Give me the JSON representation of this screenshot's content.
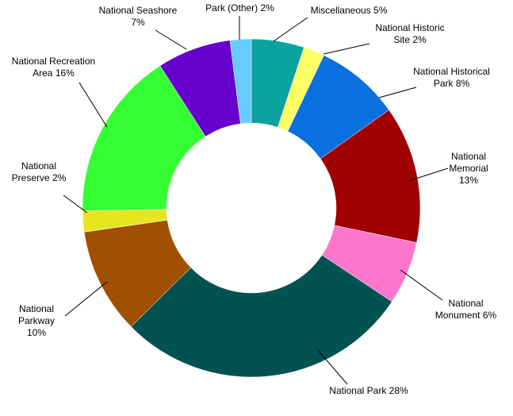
{
  "chart_data": {
    "type": "donut",
    "categories": [
      "Miscellaneous",
      "National Historic Site",
      "National Historical Park",
      "National Memorial",
      "National Monument",
      "National Park",
      "National Parkway",
      "National Preserve",
      "National Recreation Area",
      "National Seashore",
      "Park (Other)"
    ],
    "values": [
      5,
      2,
      8,
      13,
      6,
      28,
      10,
      2,
      16,
      7,
      2
    ],
    "value_labels": [
      "5%",
      "2%",
      "8%",
      "13%",
      "6%",
      "28%",
      "10%",
      "2%",
      "16%",
      "7%",
      "2%"
    ],
    "colors": [
      "#0aa39e",
      "#ffff66",
      "#0a70e0",
      "#a00000",
      "#ff77cc",
      "#035252",
      "#a05000",
      "#e6e620",
      "#33ff33",
      "#6600cc",
      "#66ccff"
    ]
  }
}
